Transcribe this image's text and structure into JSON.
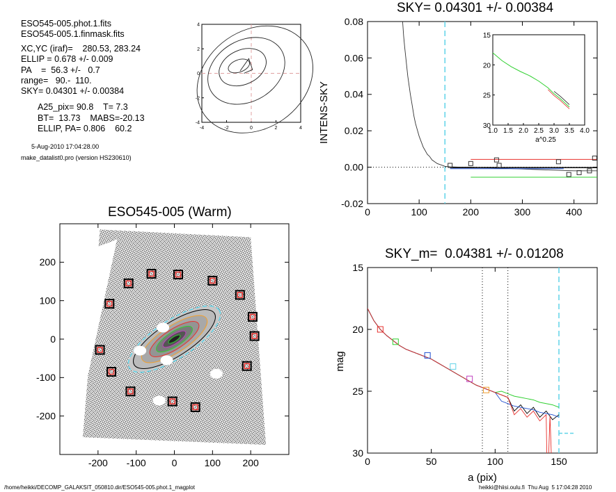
{
  "info": {
    "file1": "ESO545-005.phot.1.fits",
    "file2": "ESO545-005.1.finmask.fits",
    "lines_a": [
      "XC,YC (iraf)=    280.53, 283.24",
      "ELLIP = 0.678 +/- 0.009",
      "PA    =  56.3 +/-   0.7",
      "range=   90.-  110.",
      "SKY= 0.04301 +/- 0.00384"
    ],
    "lines_b": [
      "A25_pix= 90.8    T= 7.3",
      "BT=  13.73    MABS=-20.13",
      "ELLIP, PA= 0.806    60.2"
    ],
    "date": "5-Aug-2010 17:04:28.00",
    "program": "make_datalist0.pro (version HS230610)"
  },
  "footer": {
    "left": "/home/heikki/DECOMP_GALAKSIT_050810.dir/ESO545-005.phot.1_magplot",
    "right": "heikki@hiisi.oulu.fi  Thu Aug  5 17:04:28 2010"
  },
  "colors": {
    "cyan": "#5fd3e8",
    "red": "#e8302c",
    "green": "#30d030",
    "blue": "#2050d0",
    "magenta": "#c040c0",
    "orange": "#f0a030",
    "pink": "#e0a0a0"
  },
  "chart_data": [
    {
      "id": "contour",
      "type": "contour",
      "xlim": [
        -4,
        4
      ],
      "ylim": [
        -4,
        4
      ],
      "xticks": [
        -4,
        -2,
        0,
        2,
        4
      ],
      "yticks": [
        -4,
        -2,
        0,
        2,
        4
      ],
      "tick_labels_x": [
        "-4",
        "-2",
        "0",
        "2",
        "4"
      ],
      "tick_labels_y": [
        "-4",
        "-2",
        "0",
        "2",
        "4"
      ]
    },
    {
      "id": "sky",
      "type": "line",
      "title": "SKY= 0.04301 +/- 0.00384",
      "ylabel": "INTENS-SKY",
      "xlim": [
        0,
        445
      ],
      "ylim": [
        -0.02,
        0.08
      ],
      "xticks": [
        0,
        100,
        200,
        300,
        400
      ],
      "yticks": [
        -0.02,
        0.0,
        0.02,
        0.04,
        0.06,
        0.08
      ],
      "tick_labels_x": [
        "0",
        "100",
        "200",
        "300",
        "400"
      ],
      "tick_labels_y": [
        "-0.02",
        "0.00",
        "0.02",
        "0.04",
        "0.06",
        "0.08"
      ],
      "vline_x": 150,
      "profile": [
        [
          68,
          0.08
        ],
        [
          70,
          0.072
        ],
        [
          72,
          0.066
        ],
        [
          75,
          0.058
        ],
        [
          78,
          0.05
        ],
        [
          80,
          0.046
        ],
        [
          83,
          0.04
        ],
        [
          86,
          0.035
        ],
        [
          90,
          0.028
        ],
        [
          93,
          0.024
        ],
        [
          97,
          0.02
        ],
        [
          100,
          0.017
        ],
        [
          104,
          0.014
        ],
        [
          108,
          0.011
        ],
        [
          112,
          0.009
        ],
        [
          116,
          0.007
        ],
        [
          120,
          0.006
        ],
        [
          125,
          0.004
        ],
        [
          130,
          0.003
        ],
        [
          135,
          0.002
        ],
        [
          140,
          0.0015
        ],
        [
          145,
          0.001
        ],
        [
          150,
          0.0005
        ],
        [
          160,
          0.0002
        ],
        [
          180,
          0.0
        ],
        [
          200,
          0.0
        ],
        [
          250,
          -0.0005
        ],
        [
          300,
          -0.001
        ],
        [
          350,
          -0.0015
        ],
        [
          400,
          -0.002
        ],
        [
          445,
          -0.002
        ]
      ],
      "sky_levels": [
        {
          "color": "red",
          "y": 0.0043,
          "x": [
            200,
            445
          ]
        },
        {
          "color": "green",
          "y": -0.0055,
          "x": [
            200,
            445
          ]
        },
        {
          "color": "blue",
          "y": -0.0008,
          "x": [
            160,
            380
          ]
        }
      ],
      "squares": [
        [
          160,
          0.001
        ],
        [
          200,
          0.002
        ],
        [
          250,
          0.004
        ],
        [
          255,
          0.001
        ],
        [
          370,
          0.003
        ],
        [
          390,
          -0.004
        ],
        [
          410,
          -0.003
        ],
        [
          430,
          -0.002
        ],
        [
          440,
          0.005
        ]
      ],
      "inset": {
        "xlim": [
          1.0,
          4.0
        ],
        "ylim": [
          15,
          30
        ],
        "xticks": [
          1.0,
          1.5,
          2.0,
          2.5,
          3.0,
          3.5,
          4.0
        ],
        "yticks": [
          15,
          20,
          25,
          30
        ],
        "tick_labels_x": [
          "1.0",
          "1.5",
          "2.0",
          "2.5",
          "3.0",
          "3.5",
          "4.0"
        ],
        "tick_labels_y": [
          "15",
          "20",
          "25",
          "30"
        ],
        "xlabel": "a^0.25",
        "x": [
          1.0,
          1.3,
          1.6,
          1.9,
          2.2,
          2.5,
          2.8,
          3.0,
          3.2,
          3.35,
          3.5
        ],
        "y": [
          18.0,
          19.3,
          20.3,
          21.1,
          21.8,
          22.7,
          23.8,
          24.8,
          25.6,
          26.3,
          27.0
        ]
      }
    },
    {
      "id": "image",
      "type": "image",
      "title": "ESO545-005 (Warm)",
      "xlim": [
        -300,
        300
      ],
      "ylim": [
        -300,
        300
      ],
      "xticks": [
        -200,
        -100,
        0,
        100,
        200
      ],
      "yticks": [
        -200,
        -100,
        0,
        100,
        200
      ],
      "tick_labels_x": [
        "-200",
        "-100",
        "0",
        "100",
        "200"
      ],
      "tick_labels_y": [
        "-200",
        "-100",
        "0",
        "100",
        "200"
      ],
      "sky_boxes": [
        [
          -60,
          170
        ],
        [
          10,
          168
        ],
        [
          -120,
          145
        ],
        [
          100,
          152
        ],
        [
          172,
          115
        ],
        [
          -170,
          92
        ],
        [
          205,
          58
        ],
        [
          210,
          8
        ],
        [
          -195,
          -28
        ],
        [
          190,
          -70
        ],
        [
          -165,
          -85
        ],
        [
          -115,
          -136
        ],
        [
          -5,
          -162
        ],
        [
          55,
          -177
        ]
      ],
      "ellipse": {
        "x0": 0,
        "y0": 0,
        "pa_deg": -33,
        "a": [
          140,
          125,
          100,
          75,
          55,
          35,
          18
        ],
        "b": [
          50,
          44,
          35,
          26,
          19,
          12,
          6
        ]
      }
    },
    {
      "id": "magprof",
      "type": "line",
      "title": "SKY_m=  0.04381 +/- 0.01208",
      "xlabel": "a (pix)",
      "ylabel": "mag",
      "xlim": [
        0,
        180
      ],
      "ylim": [
        15,
        30
      ],
      "y_inverted": true,
      "xticks": [
        0,
        50,
        100,
        150
      ],
      "yticks": [
        15,
        20,
        25,
        30
      ],
      "tick_labels_x": [
        "0",
        "50",
        "100",
        "150"
      ],
      "tick_labels_y": [
        "15",
        "20",
        "25",
        "30"
      ],
      "vlines_dotted": [
        90,
        110
      ],
      "vline_x": 150,
      "profile_x": [
        0,
        5,
        10,
        15,
        20,
        25,
        30,
        35,
        40,
        45,
        50,
        55,
        60,
        65,
        70,
        75,
        80,
        85,
        90,
        95,
        100,
        105,
        110,
        115,
        120,
        125,
        130,
        135,
        140,
        145,
        150
      ],
      "profile_y": [
        18.3,
        19.3,
        20.0,
        20.5,
        20.9,
        21.3,
        21.6,
        21.8,
        22.0,
        22.2,
        22.4,
        22.7,
        23.0,
        23.3,
        23.6,
        23.9,
        24.2,
        24.5,
        24.7,
        24.9,
        25.1,
        25.3,
        25.5,
        25.7,
        25.8,
        25.9,
        26.0,
        26.2,
        26.3,
        26.4,
        26.6
      ],
      "squares": [
        {
          "x": 10,
          "y": 20.0,
          "color": "red"
        },
        {
          "x": 22,
          "y": 21.0,
          "color": "green"
        },
        {
          "x": 47,
          "y": 22.1,
          "color": "blue"
        },
        {
          "x": 67,
          "y": 23.0,
          "color": "cyan"
        },
        {
          "x": 80,
          "y": 24.0,
          "color": "magenta"
        },
        {
          "x": 93,
          "y": 24.9,
          "color": "orange"
        }
      ]
    }
  ]
}
